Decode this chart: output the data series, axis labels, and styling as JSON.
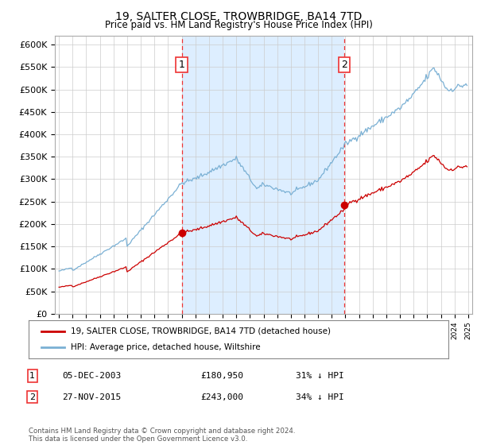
{
  "title": "19, SALTER CLOSE, TROWBRIDGE, BA14 7TD",
  "subtitle": "Price paid vs. HM Land Registry's House Price Index (HPI)",
  "red_label": "19, SALTER CLOSE, TROWBRIDGE, BA14 7TD (detached house)",
  "blue_label": "HPI: Average price, detached house, Wiltshire",
  "transaction1_date": "05-DEC-2003",
  "transaction1_price": "£180,950",
  "transaction1_hpi": "31% ↓ HPI",
  "transaction2_date": "27-NOV-2015",
  "transaction2_price": "£243,000",
  "transaction2_hpi": "34% ↓ HPI",
  "footnote": "Contains HM Land Registry data © Crown copyright and database right 2024.\nThis data is licensed under the Open Government Licence v3.0.",
  "ylim": [
    0,
    620000
  ],
  "yticks": [
    0,
    50000,
    100000,
    150000,
    200000,
    250000,
    300000,
    350000,
    400000,
    450000,
    500000,
    550000,
    600000
  ],
  "ytick_labels": [
    "£0",
    "£50K",
    "£100K",
    "£150K",
    "£200K",
    "£250K",
    "£300K",
    "£350K",
    "£400K",
    "£450K",
    "£500K",
    "£550K",
    "£600K"
  ],
  "vline1_year": 2004.0,
  "vline2_year": 2015.92,
  "dot1_year": 2004.0,
  "dot1_price": 180950,
  "dot2_year": 2015.92,
  "dot2_price": 243000,
  "background_color": "#ffffff",
  "grid_color": "#cccccc",
  "red_color": "#cc0000",
  "blue_color": "#7ab0d4",
  "shade_color": "#ddeeff",
  "vline_color": "#ee3333",
  "xlim_left": 1994.7,
  "xlim_right": 2025.3
}
